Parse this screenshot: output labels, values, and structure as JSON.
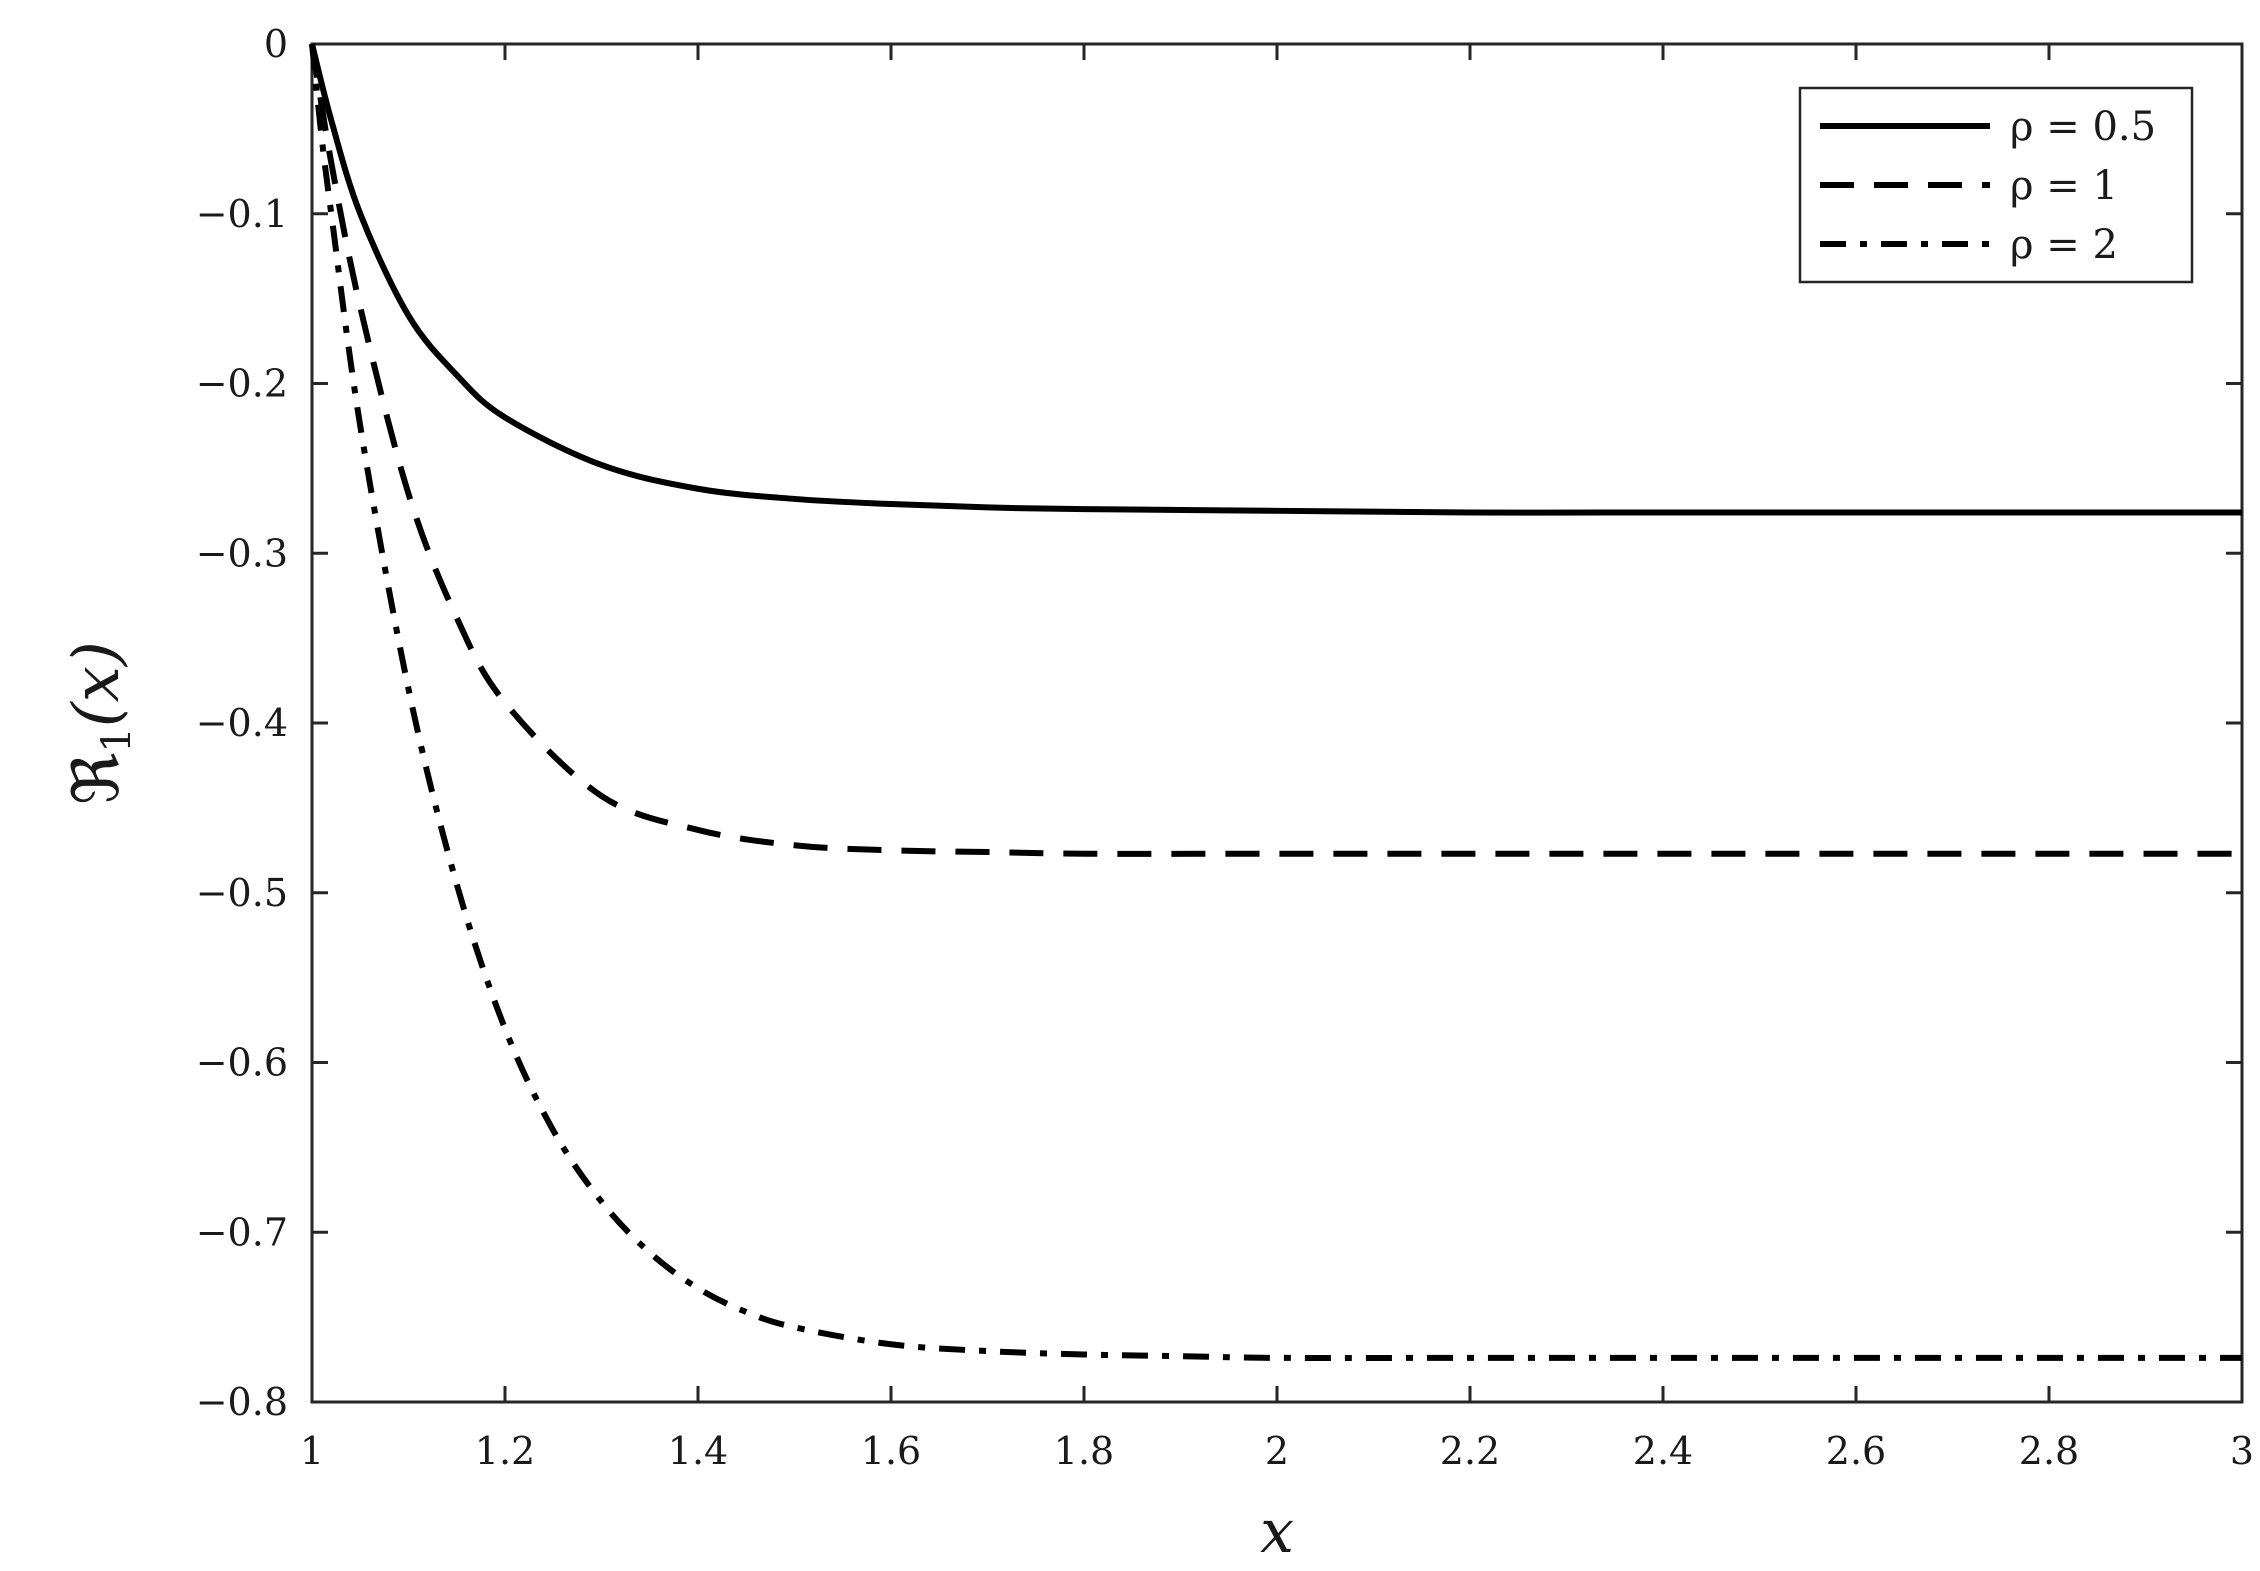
{
  "chart_data": {
    "type": "line",
    "xlabel": "x",
    "ylabel_main": "ℜ",
    "ylabel_sub": "1",
    "ylabel_arg": "(x)",
    "xlim": [
      1,
      3
    ],
    "ylim": [
      -0.8,
      0
    ],
    "xticks": [
      1,
      1.2,
      1.4,
      1.6,
      1.8,
      2,
      2.2,
      2.4,
      2.6,
      2.8,
      3
    ],
    "xtick_labels": [
      "1",
      "1.2",
      "1.4",
      "1.6",
      "1.8",
      "2",
      "2.2",
      "2.4",
      "2.6",
      "2.8",
      "3"
    ],
    "yticks": [
      0,
      -0.1,
      -0.2,
      -0.3,
      -0.4,
      -0.5,
      -0.6,
      -0.7,
      -0.8
    ],
    "ytick_labels": [
      "0",
      "−0.1",
      "−0.2",
      "−0.3",
      "−0.4",
      "−0.5",
      "−0.6",
      "−0.7",
      "−0.8"
    ],
    "grid": false,
    "legend_position": "top-right",
    "series": [
      {
        "name": "ρ = 0.5",
        "style": "solid",
        "x": [
          1,
          1.02,
          1.05,
          1.1,
          1.15,
          1.2,
          1.3,
          1.4,
          1.5,
          1.6,
          1.7,
          1.8,
          2,
          2.2,
          2.4,
          2.6,
          2.8,
          3
        ],
        "values": [
          0,
          -0.045,
          -0.1,
          -0.16,
          -0.195,
          -0.22,
          -0.248,
          -0.262,
          -0.268,
          -0.271,
          -0.273,
          -0.274,
          -0.275,
          -0.276,
          -0.276,
          -0.276,
          -0.276,
          -0.276
        ]
      },
      {
        "name": "ρ = 1",
        "style": "dashed",
        "x": [
          1,
          1.02,
          1.05,
          1.1,
          1.15,
          1.2,
          1.3,
          1.4,
          1.5,
          1.6,
          1.7,
          1.8,
          2,
          2.2,
          2.4,
          2.6,
          2.8,
          3
        ],
        "values": [
          0,
          -0.07,
          -0.155,
          -0.265,
          -0.338,
          -0.388,
          -0.443,
          -0.463,
          -0.472,
          -0.475,
          -0.476,
          -0.477,
          -0.477,
          -0.477,
          -0.477,
          -0.477,
          -0.477,
          -0.477
        ]
      },
      {
        "name": "ρ = 2",
        "style": "dashdot",
        "x": [
          1,
          1.01,
          1.02,
          1.05,
          1.1,
          1.15,
          1.2,
          1.25,
          1.3,
          1.35,
          1.4,
          1.45,
          1.5,
          1.6,
          1.7,
          1.8,
          1.9,
          2,
          2.2,
          2.4,
          2.6,
          2.8,
          3
        ],
        "values": [
          0,
          -0.055,
          -0.1,
          -0.225,
          -0.38,
          -0.495,
          -0.58,
          -0.64,
          -0.682,
          -0.712,
          -0.733,
          -0.747,
          -0.756,
          -0.766,
          -0.77,
          -0.772,
          -0.773,
          -0.774,
          -0.774,
          -0.774,
          -0.774,
          -0.774,
          -0.774
        ]
      }
    ]
  }
}
